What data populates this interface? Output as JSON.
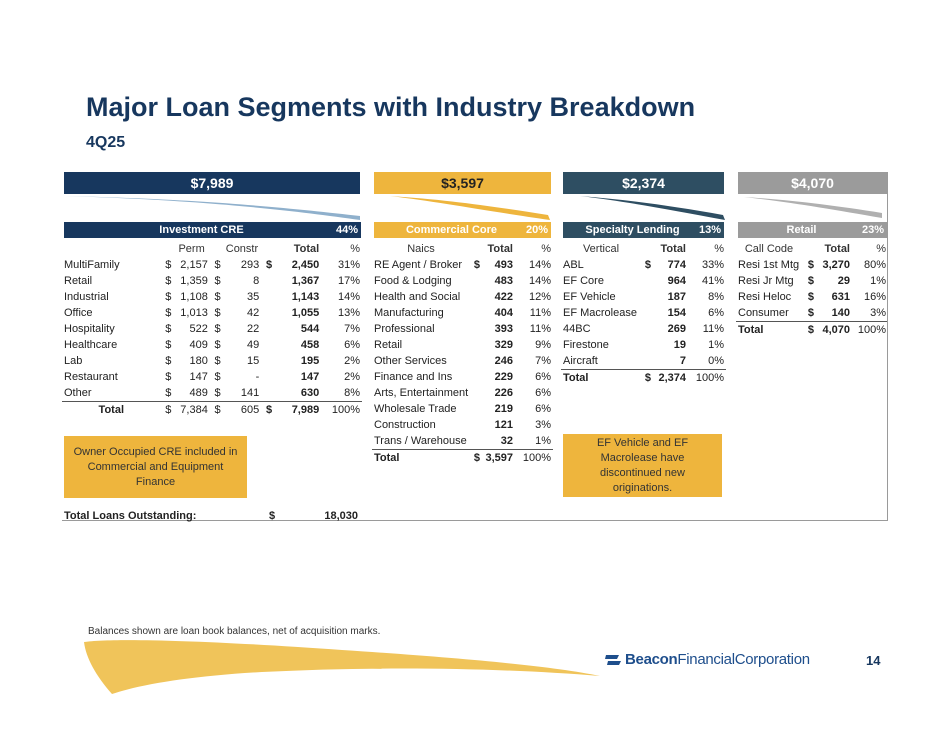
{
  "title": "Major Loan Segments with Industry Breakdown",
  "subtitle": "4Q25",
  "colors": {
    "navy": "#17375e",
    "gold": "#eeb53d",
    "slate": "#2e4e62",
    "gray": "#9b9b9b"
  },
  "segments": {
    "cre": {
      "total": "$7,989",
      "name": "Investment CRE",
      "pct": "44%",
      "headers": [
        "",
        "Perm",
        "Constr",
        "Total",
        "%"
      ],
      "rows": [
        {
          "label": "MultiFamily",
          "perm": "2,157",
          "constr": "293",
          "total": "2,450",
          "pct": "31%"
        },
        {
          "label": "Retail",
          "perm": "1,359",
          "constr": "8",
          "total": "1,367",
          "pct": "17%"
        },
        {
          "label": "Industrial",
          "perm": "1,108",
          "constr": "35",
          "total": "1,143",
          "pct": "14%"
        },
        {
          "label": "Office",
          "perm": "1,013",
          "constr": "42",
          "total": "1,055",
          "pct": "13%"
        },
        {
          "label": "Hospitality",
          "perm": "522",
          "constr": "22",
          "total": "544",
          "pct": "7%"
        },
        {
          "label": "Healthcare",
          "perm": "409",
          "constr": "49",
          "total": "458",
          "pct": "6%"
        },
        {
          "label": "Lab",
          "perm": "180",
          "constr": "15",
          "total": "195",
          "pct": "2%"
        },
        {
          "label": "Restaurant",
          "perm": "147",
          "constr": "-",
          "total": "147",
          "pct": "2%"
        },
        {
          "label": "Other",
          "perm": "489",
          "constr": "141",
          "total": "630",
          "pct": "8%"
        }
      ],
      "total_row": {
        "label": "Total",
        "perm": "7,384",
        "constr": "605",
        "total": "7,989",
        "pct": "100%"
      },
      "dollar": "$"
    },
    "commercial": {
      "total": "$3,597",
      "name": "Commercial Core",
      "pct": "20%",
      "headers": [
        "Naics",
        "Total",
        "%"
      ],
      "rows": [
        {
          "label": "RE Agent / Broker",
          "total": "493",
          "pct": "14%"
        },
        {
          "label": "Food & Lodging",
          "total": "483",
          "pct": "14%"
        },
        {
          "label": "Health and Social",
          "total": "422",
          "pct": "12%"
        },
        {
          "label": "Manufacturing",
          "total": "404",
          "pct": "11%"
        },
        {
          "label": "Professional",
          "total": "393",
          "pct": "11%"
        },
        {
          "label": "Retail",
          "total": "329",
          "pct": "9%"
        },
        {
          "label": "Other Services",
          "total": "246",
          "pct": "7%"
        },
        {
          "label": "Finance and Ins",
          "total": "229",
          "pct": "6%"
        },
        {
          "label": "Arts, Entertainment",
          "total": "226",
          "pct": "6%"
        },
        {
          "label": "Wholesale Trade",
          "total": "219",
          "pct": "6%"
        },
        {
          "label": "Construction",
          "total": "121",
          "pct": "3%"
        },
        {
          "label": "Trans / Warehouse",
          "total": "32",
          "pct": "1%"
        }
      ],
      "total_row": {
        "label": "Total",
        "total": "3,597",
        "pct": "100%"
      }
    },
    "specialty": {
      "total": "$2,374",
      "name": "Specialty Lending",
      "pct": "13%",
      "headers": [
        "Vertical",
        "Total",
        "%"
      ],
      "rows": [
        {
          "label": "ABL",
          "total": "774",
          "pct": "33%"
        },
        {
          "label": "EF Core",
          "total": "964",
          "pct": "41%"
        },
        {
          "label": "EF Vehicle",
          "total": "187",
          "pct": "8%"
        },
        {
          "label": "EF Macrolease",
          "total": "154",
          "pct": "6%"
        },
        {
          "label": "44BC",
          "total": "269",
          "pct": "11%"
        },
        {
          "label": "Firestone",
          "total": "19",
          "pct": "1%"
        },
        {
          "label": "Aircraft",
          "total": "7",
          "pct": "0%"
        }
      ],
      "total_row": {
        "label": "Total",
        "total": "2,374",
        "pct": "100%"
      }
    },
    "retail": {
      "total": "$4,070",
      "name": "Retail",
      "pct": "23%",
      "headers": [
        "Call Code",
        "Total",
        "%"
      ],
      "rows": [
        {
          "label": "Resi 1st Mtg",
          "total": "3,270",
          "pct": "80%"
        },
        {
          "label": "Resi Jr Mtg",
          "total": "29",
          "pct": "1%"
        },
        {
          "label": "Resi Heloc",
          "total": "631",
          "pct": "16%"
        },
        {
          "label": "Consumer",
          "total": "140",
          "pct": "3%"
        }
      ],
      "total_row": {
        "label": "Total",
        "total": "4,070",
        "pct": "100%"
      }
    }
  },
  "notes": {
    "owner_occupied": "Owner Occupied CRE included in Commercial and Equipment Finance",
    "ef_vehicle": "EF Vehicle and EF Macrolease have discontinued new originations."
  },
  "total_loans": {
    "label": "Total Loans Outstanding:",
    "dollar": "$",
    "value": "18,030"
  },
  "footnote": "Balances shown are loan book balances, net of acquisition marks.",
  "logo": {
    "part1": "Beacon",
    "part2": "FinancialCorporation"
  },
  "page_number": "14"
}
